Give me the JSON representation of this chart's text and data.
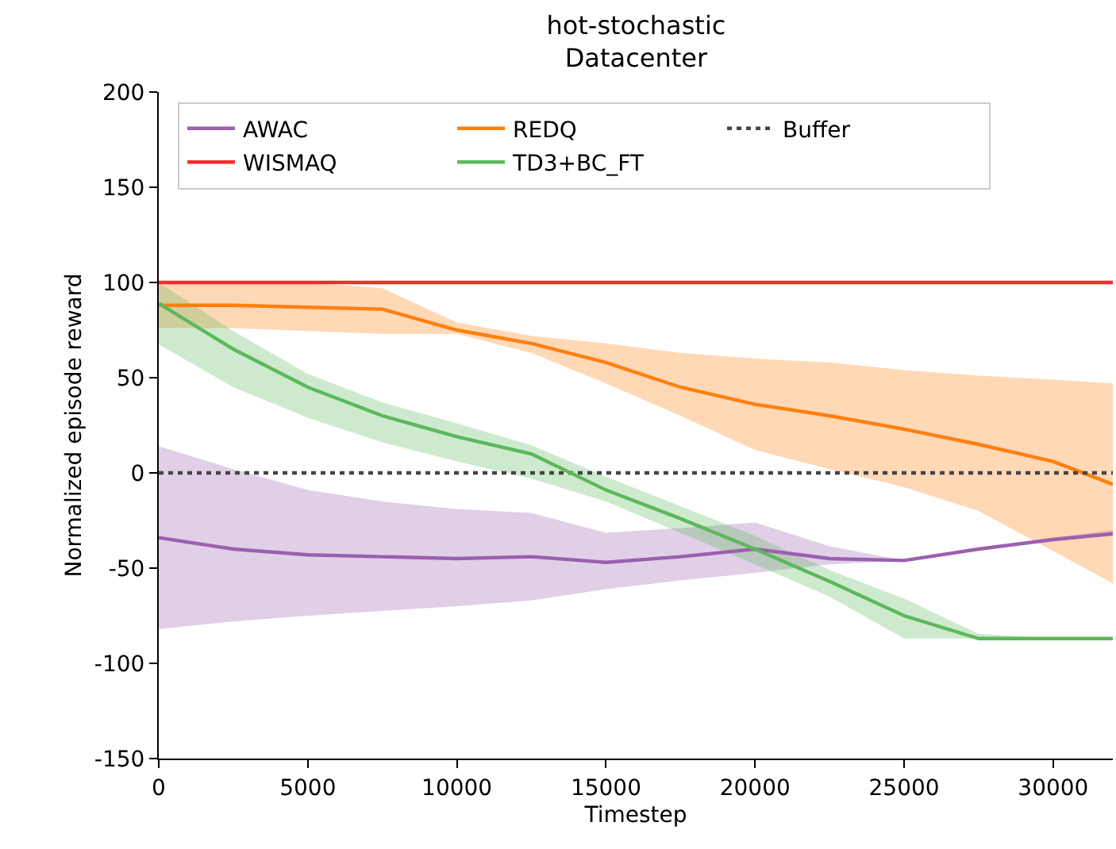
{
  "chart_data": {
    "type": "line",
    "title": "hot-stochastic\nDatacenter",
    "xlabel": "Timestep",
    "ylabel": "Normalized episode reward",
    "x": [
      0,
      2500,
      5000,
      7500,
      10000,
      12500,
      15000,
      17500,
      20000,
      22500,
      25000,
      27500,
      30000,
      32000
    ],
    "series": [
      {
        "name": "AWAC",
        "color": "#9c5fb0",
        "values": [
          -34,
          -40,
          -43,
          -44,
          -45,
          -44,
          -47,
          -44,
          -40,
          -45,
          -46,
          -40,
          -35,
          -32
        ],
        "upper": [
          14,
          2,
          -9,
          -15,
          -19,
          -21,
          -31.5,
          -29,
          -26,
          -38.5,
          -46,
          -40,
          -34,
          -30
        ],
        "lower": [
          -82,
          -78,
          -75,
          -72.5,
          -70,
          -67,
          -61,
          -56.5,
          -52.5,
          -48,
          -46,
          -40,
          -35,
          -33
        ]
      },
      {
        "name": "REDQ",
        "color": "#ff7f0e",
        "values": [
          88,
          88,
          87,
          86,
          75,
          68,
          58,
          45,
          36,
          30,
          23,
          15,
          6,
          -6
        ],
        "upper": [
          100,
          100,
          100,
          97,
          79,
          72,
          68,
          63,
          60,
          58,
          54,
          51,
          49,
          47
        ],
        "lower": [
          76,
          76,
          74.5,
          73,
          73,
          63,
          47,
          30,
          12,
          2,
          -7.5,
          -20,
          -41,
          -58
        ]
      },
      {
        "name": "Buffer",
        "color": "#444444",
        "line_style": "dotted",
        "values": [
          0,
          0,
          0,
          0,
          0,
          0,
          0,
          0,
          0,
          0,
          0,
          0,
          0,
          0
        ]
      },
      {
        "name": "WISMAQ",
        "color": "#ff2a2a",
        "values": [
          100,
          100,
          100,
          100,
          100,
          100,
          100,
          100,
          100,
          100,
          100,
          100,
          100,
          100
        ]
      },
      {
        "name": "TD3+BC_FT",
        "color": "#5cb85c",
        "values": [
          89,
          65,
          45,
          30,
          19,
          10,
          -9,
          -24,
          -40,
          -57,
          -75,
          -87,
          -87,
          -87
        ],
        "upper": [
          100,
          74.5,
          52,
          37,
          26,
          14.5,
          -2,
          -17.5,
          -33,
          -51,
          -66,
          -84.5,
          -87,
          -87
        ],
        "lower": [
          67.5,
          45,
          29,
          16,
          6,
          -3,
          -15,
          -31.5,
          -48,
          -65,
          -87,
          -87,
          -87,
          -87
        ]
      }
    ],
    "xlim": [
      0,
      32000
    ],
    "xticks": [
      0,
      5000,
      10000,
      15000,
      20000,
      25000,
      30000
    ],
    "ylim": [
      -150,
      200
    ],
    "yticks": [
      -150,
      -100,
      -50,
      0,
      50,
      100,
      150,
      200
    ],
    "legend": "top left",
    "line_style": "solid",
    "marker": "none"
  }
}
